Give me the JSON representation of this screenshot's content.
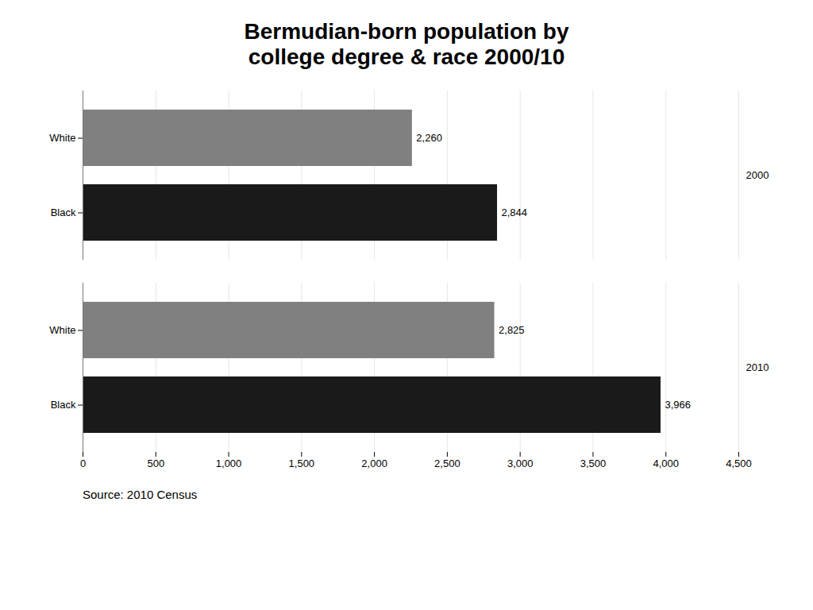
{
  "chart_data": {
    "type": "bar",
    "orientation": "horizontal",
    "title": "Bermudian-born population by\ncollege degree & race 2000/10",
    "caption": "Source: 2010 Census",
    "categories": [
      "White",
      "Black",
      "White",
      "Black"
    ],
    "groups": [
      "2000",
      "2000",
      "2010",
      "2010"
    ],
    "values": [
      2260,
      2844,
      2825,
      3966
    ],
    "value_labels": [
      "2,260",
      "2,844",
      "2,825",
      "3,966"
    ],
    "colors": [
      "#808080",
      "#1a1a1a",
      "#808080",
      "#1a1a1a"
    ],
    "data_labels": true,
    "xlim": [
      0,
      4500
    ],
    "xticks": [
      0,
      500,
      {
        "value": 1000,
        "label": "1,000"
      },
      {
        "value": 1500,
        "label": "1,500"
      },
      {
        "value": 2000,
        "label": "2,000"
      },
      {
        "value": 2500,
        "label": "2,500"
      },
      {
        "value": 3000,
        "label": "3,000"
      },
      {
        "value": 3500,
        "label": "3,500"
      },
      {
        "value": 4000,
        "label": "4,000"
      },
      {
        "value": 4500,
        "label": "4,500"
      }
    ],
    "grid": true
  }
}
